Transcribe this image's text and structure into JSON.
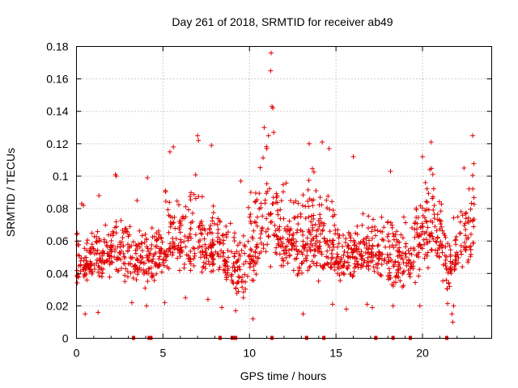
{
  "chart_data": {
    "type": "scatter",
    "title": "Day 261 of 2018, SRMTID for receiver ab49",
    "xlabel": "GPS time / hours",
    "ylabel": "SRMTID / TECUs",
    "xlim": [
      0,
      24
    ],
    "ylim": [
      0,
      0.18
    ],
    "xticks": [
      0,
      5,
      10,
      15,
      20
    ],
    "xtick_labels": [
      "0",
      "5",
      "10",
      "15",
      "20"
    ],
    "yticks": [
      0,
      0.02,
      0.04,
      0.06,
      0.08,
      0.1,
      0.12,
      0.14,
      0.16,
      0.18
    ],
    "ytick_labels": [
      "0",
      "0.02",
      "0.04",
      "0.06",
      "0.08",
      "0.1",
      "0.12",
      "0.14",
      "0.16",
      "0.18"
    ],
    "grid": true,
    "marker": "+",
    "color": "#e00000",
    "envelope": {
      "x": [
        0,
        0.5,
        1,
        1.5,
        2,
        2.5,
        3,
        3.5,
        4,
        4.5,
        5,
        5.5,
        6,
        6.5,
        7,
        7.5,
        8,
        8.5,
        9,
        9.5,
        10,
        10.5,
        11,
        11.5,
        12,
        12.5,
        13,
        13.5,
        14,
        14.5,
        15,
        15.5,
        16,
        16.5,
        17,
        17.5,
        18,
        18.5,
        19,
        19.5,
        20,
        20.5,
        21,
        21.5,
        22,
        22.5,
        23
      ],
      "y_low": [
        0.025,
        0.03,
        0.032,
        0.033,
        0.035,
        0.035,
        0.03,
        0.03,
        0.028,
        0.027,
        0.03,
        0.032,
        0.035,
        0.033,
        0.03,
        0.032,
        0.035,
        0.03,
        0.02,
        0.02,
        0.025,
        0.03,
        0.04,
        0.04,
        0.035,
        0.03,
        0.025,
        0.028,
        0.03,
        0.028,
        0.025,
        0.025,
        0.03,
        0.03,
        0.032,
        0.028,
        0.022,
        0.022,
        0.025,
        0.03,
        0.035,
        0.035,
        0.04,
        0.015,
        0.03,
        0.035,
        0.04
      ],
      "y_high": [
        0.08,
        0.07,
        0.08,
        0.075,
        0.08,
        0.1,
        0.09,
        0.07,
        0.085,
        0.08,
        0.1,
        0.11,
        0.1,
        0.1,
        0.12,
        0.09,
        0.09,
        0.08,
        0.08,
        0.08,
        0.1,
        0.11,
        0.13,
        0.11,
        0.1,
        0.105,
        0.11,
        0.12,
        0.11,
        0.1,
        0.09,
        0.085,
        0.08,
        0.09,
        0.085,
        0.09,
        0.095,
        0.09,
        0.09,
        0.1,
        0.1,
        0.12,
        0.1,
        0.08,
        0.1,
        0.1,
        0.12
      ]
    },
    "points": [
      [
        11.25,
        0.176
      ],
      [
        11.22,
        0.165
      ],
      [
        11.3,
        0.143
      ],
      [
        11.35,
        0.142
      ],
      [
        10.85,
        0.13
      ],
      [
        11.1,
        0.125
      ],
      [
        11.4,
        0.127
      ],
      [
        7.0,
        0.125
      ],
      [
        7.05,
        0.122
      ],
      [
        22.9,
        0.125
      ],
      [
        20.5,
        0.121
      ],
      [
        14.2,
        0.121
      ],
      [
        13.45,
        0.12
      ],
      [
        7.8,
        0.119
      ],
      [
        5.6,
        0.118
      ],
      [
        5.4,
        0.115
      ],
      [
        14.6,
        0.117
      ],
      [
        11.0,
        0.117
      ],
      [
        20.0,
        0.112
      ],
      [
        16.0,
        0.112
      ],
      [
        2.25,
        0.101
      ],
      [
        2.3,
        0.1
      ],
      [
        4.1,
        0.099
      ],
      [
        9.5,
        0.097
      ],
      [
        18.15,
        0.103
      ],
      [
        22.4,
        0.105
      ],
      [
        0.3,
        0.083
      ],
      [
        0.4,
        0.082
      ],
      [
        1.3,
        0.088
      ],
      [
        3.5,
        0.085
      ],
      [
        0.5,
        0.015
      ],
      [
        1.25,
        0.016
      ],
      [
        4.05,
        0.02
      ],
      [
        8.4,
        0.019
      ],
      [
        9.2,
        0.017
      ],
      [
        10.2,
        0.012
      ],
      [
        13.1,
        0.015
      ],
      [
        15.6,
        0.018
      ],
      [
        17.1,
        0.019
      ],
      [
        18.3,
        0.02
      ],
      [
        19.85,
        0.02
      ],
      [
        21.75,
        0.01
      ],
      [
        21.7,
        0.015
      ],
      [
        21.8,
        0.02
      ],
      [
        16.8,
        0.021
      ],
      [
        14.8,
        0.021
      ],
      [
        7.6,
        0.024
      ],
      [
        6.3,
        0.025
      ],
      [
        5.1,
        0.022
      ],
      [
        3.2,
        0.022
      ]
    ],
    "gap_markers_x": [
      3.3,
      4.2,
      4.3,
      8.3,
      9.0,
      9.1,
      9.2,
      11.3,
      13.3,
      14.3,
      17.3,
      18.3,
      19.3,
      21.4
    ]
  }
}
